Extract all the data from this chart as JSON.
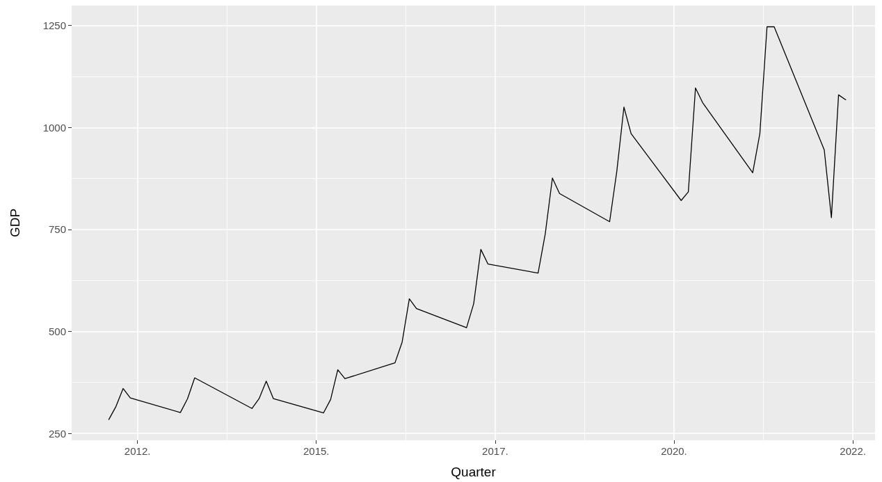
{
  "chart_data": {
    "type": "line",
    "xlabel": "Quarter",
    "ylabel": "GDP",
    "x": [
      2011.6,
      2011.7,
      2011.8,
      2011.9,
      2012.6,
      2012.7,
      2012.8,
      2013.6,
      2013.7,
      2013.8,
      2013.9,
      2014.6,
      2014.7,
      2014.8,
      2014.9,
      2015.6,
      2015.7,
      2015.8,
      2015.9,
      2016.6,
      2016.7,
      2016.8,
      2016.9,
      2017.6,
      2017.7,
      2017.8,
      2017.9,
      2018.6,
      2018.7,
      2018.8,
      2018.9,
      2019.6,
      2019.7,
      2019.8,
      2019.9,
      2020.6,
      2020.7,
      2020.8,
      2020.9,
      2021.6,
      2021.7,
      2021.8,
      2021.9
    ],
    "series": [
      {
        "color": "#000000",
        "values": [
          284,
          316,
          360,
          337,
          301,
          335,
          386,
          311,
          335,
          378,
          335,
          300,
          333,
          406,
          384,
          423,
          474,
          580,
          556,
          509,
          568,
          701,
          665,
          643,
          739,
          876,
          838,
          769,
          892,
          1050,
          985,
          821,
          842,
          1097,
          1061,
          889,
          985,
          1247,
          1247,
          945,
          779,
          1080,
          1068
        ]
      }
    ],
    "xlim": [
      2011.08,
      2022.31
    ],
    "xticks": [
      {
        "value": 2012,
        "label": "2012."
      },
      {
        "value": 2014.5,
        "label": "2015."
      },
      {
        "value": 2017,
        "label": "2017."
      },
      {
        "value": 2019.5,
        "label": "2020."
      },
      {
        "value": 2022,
        "label": "2022."
      }
    ],
    "ylim": [
      233,
      1299
    ],
    "yticks": [
      250,
      500,
      750,
      1000,
      1250
    ],
    "grid": true,
    "marker": "none",
    "line_style": "solid"
  }
}
